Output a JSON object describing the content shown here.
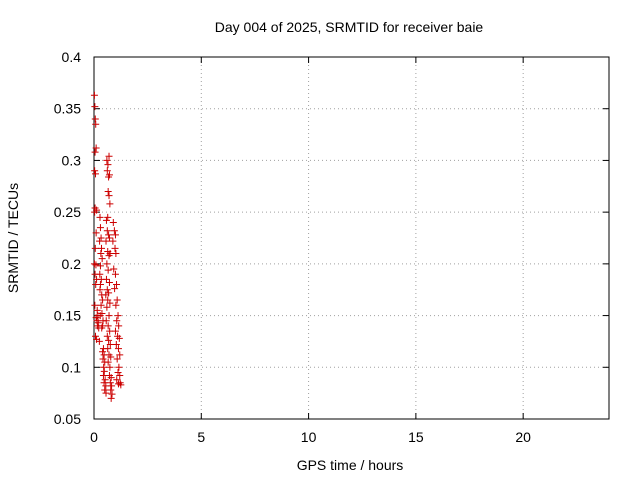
{
  "chart_data": {
    "type": "scatter",
    "title": "Day 004 of 2025, SRMTID for receiver baie",
    "xlabel": "GPS time / hours",
    "ylabel": "SRMTID / TECUs",
    "xlim": [
      0,
      24
    ],
    "ylim": [
      0.05,
      0.4
    ],
    "xticks": [
      "0",
      "5",
      "10",
      "15",
      "20"
    ],
    "yticks": [
      "0.05",
      "0.1",
      "0.15",
      "0.2",
      "0.25",
      "0.3",
      "0.35",
      "0.4"
    ],
    "grid": true,
    "marker": "plus",
    "color": "#cc0000",
    "points": [
      [
        0.02,
        0.363
      ],
      [
        0.04,
        0.352
      ],
      [
        0.06,
        0.34
      ],
      [
        0.08,
        0.335
      ],
      [
        0.1,
        0.312
      ],
      [
        0.05,
        0.308
      ],
      [
        0.03,
        0.29
      ],
      [
        0.07,
        0.287
      ],
      [
        0.05,
        0.254
      ],
      [
        0.12,
        0.252
      ],
      [
        0.03,
        0.25
      ],
      [
        0.1,
        0.23
      ],
      [
        0.06,
        0.215
      ],
      [
        0.02,
        0.2
      ],
      [
        0.09,
        0.199
      ],
      [
        0.05,
        0.19
      ],
      [
        0.12,
        0.185
      ],
      [
        0.08,
        0.18
      ],
      [
        0.04,
        0.16
      ],
      [
        0.15,
        0.155
      ],
      [
        0.18,
        0.15
      ],
      [
        0.1,
        0.148
      ],
      [
        0.14,
        0.145
      ],
      [
        0.2,
        0.143
      ],
      [
        0.16,
        0.14
      ],
      [
        0.22,
        0.138
      ],
      [
        0.07,
        0.13
      ],
      [
        0.12,
        0.127
      ],
      [
        0.25,
        0.125
      ],
      [
        0.28,
        0.245
      ],
      [
        0.3,
        0.235
      ],
      [
        0.33,
        0.225
      ],
      [
        0.26,
        0.222
      ],
      [
        0.35,
        0.215
      ],
      [
        0.32,
        0.21
      ],
      [
        0.38,
        0.205
      ],
      [
        0.3,
        0.198
      ],
      [
        0.27,
        0.19
      ],
      [
        0.34,
        0.185
      ],
      [
        0.3,
        0.18
      ],
      [
        0.28,
        0.175
      ],
      [
        0.36,
        0.17
      ],
      [
        0.4,
        0.165
      ],
      [
        0.33,
        0.16
      ],
      [
        0.37,
        0.152
      ],
      [
        0.29,
        0.15
      ],
      [
        0.42,
        0.145
      ],
      [
        0.4,
        0.14
      ],
      [
        0.36,
        0.138
      ],
      [
        0.44,
        0.118
      ],
      [
        0.4,
        0.115
      ],
      [
        0.47,
        0.112
      ],
      [
        0.42,
        0.108
      ],
      [
        0.5,
        0.105
      ],
      [
        0.45,
        0.1
      ],
      [
        0.48,
        0.096
      ],
      [
        0.44,
        0.092
      ],
      [
        0.52,
        0.088
      ],
      [
        0.47,
        0.085
      ],
      [
        0.55,
        0.082
      ],
      [
        0.5,
        0.078
      ],
      [
        0.56,
        0.075
      ],
      [
        0.6,
        0.3
      ],
      [
        0.65,
        0.296
      ],
      [
        0.7,
        0.304
      ],
      [
        0.62,
        0.29
      ],
      [
        0.68,
        0.284
      ],
      [
        0.72,
        0.286
      ],
      [
        0.66,
        0.27
      ],
      [
        0.7,
        0.266
      ],
      [
        0.74,
        0.258
      ],
      [
        0.64,
        0.245
      ],
      [
        0.58,
        0.242
      ],
      [
        0.62,
        0.232
      ],
      [
        0.68,
        0.228
      ],
      [
        0.72,
        0.225
      ],
      [
        0.56,
        0.222
      ],
      [
        0.64,
        0.212
      ],
      [
        0.7,
        0.208
      ],
      [
        0.75,
        0.21
      ],
      [
        0.6,
        0.2
      ],
      [
        0.66,
        0.194
      ],
      [
        0.58,
        0.185
      ],
      [
        0.72,
        0.182
      ],
      [
        0.62,
        0.175
      ],
      [
        0.68,
        0.172
      ],
      [
        0.55,
        0.17
      ],
      [
        0.64,
        0.165
      ],
      [
        0.74,
        0.162
      ],
      [
        0.6,
        0.158
      ],
      [
        0.7,
        0.15
      ],
      [
        0.57,
        0.145
      ],
      [
        0.66,
        0.14
      ],
      [
        0.73,
        0.135
      ],
      [
        0.62,
        0.13
      ],
      [
        0.68,
        0.126
      ],
      [
        0.76,
        0.122
      ],
      [
        0.64,
        0.118
      ],
      [
        0.7,
        0.112
      ],
      [
        0.78,
        0.11
      ],
      [
        0.66,
        0.105
      ],
      [
        0.74,
        0.1
      ],
      [
        0.72,
        0.092
      ],
      [
        0.8,
        0.09
      ],
      [
        0.76,
        0.085
      ],
      [
        0.82,
        0.082
      ],
      [
        0.78,
        0.078
      ],
      [
        0.84,
        0.074
      ],
      [
        0.8,
        0.07
      ],
      [
        0.9,
        0.24
      ],
      [
        0.95,
        0.232
      ],
      [
        1.0,
        0.228
      ],
      [
        0.88,
        0.222
      ],
      [
        0.98,
        0.215
      ],
      [
        1.02,
        0.21
      ],
      [
        0.92,
        0.195
      ],
      [
        1.0,
        0.19
      ],
      [
        1.05,
        0.18
      ],
      [
        0.96,
        0.176
      ],
      [
        1.08,
        0.165
      ],
      [
        1.02,
        0.16
      ],
      [
        1.12,
        0.15
      ],
      [
        1.06,
        0.145
      ],
      [
        1.15,
        0.14
      ],
      [
        1.0,
        0.135
      ],
      [
        1.1,
        0.13
      ],
      [
        1.18,
        0.128
      ],
      [
        1.04,
        0.122
      ],
      [
        1.14,
        0.118
      ],
      [
        1.2,
        0.112
      ],
      [
        1.08,
        0.108
      ],
      [
        1.16,
        0.1
      ],
      [
        1.12,
        0.095
      ],
      [
        1.2,
        0.092
      ],
      [
        1.06,
        0.088
      ],
      [
        1.22,
        0.085
      ],
      [
        1.14,
        0.084
      ],
      [
        1.25,
        0.083
      ]
    ]
  }
}
